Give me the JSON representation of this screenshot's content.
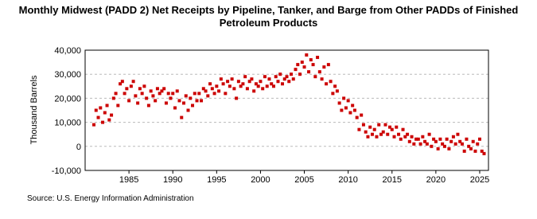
{
  "chart_data": {
    "type": "scatter",
    "title": "Monthly Midwest (PADD 2) Net Receipts by Pipeline, Tanker, and Barge from Other PADDs of Finished Petroleum Products",
    "y_label": "Thousand Barrels",
    "source": "Source: U.S. Energy Information Administration",
    "color": "#cc0000",
    "grid": true,
    "xlim": [
      1980,
      2026
    ],
    "xticks": [
      1985,
      1990,
      1995,
      2000,
      2005,
      2010,
      2015,
      2020,
      2025
    ],
    "ylim": [
      -10000,
      40000
    ],
    "yticks": [
      {
        "value": -10000,
        "label": "-10,000"
      },
      0,
      {
        "value": 10000,
        "label": "10,000"
      },
      {
        "value": 20000,
        "label": "20,000"
      },
      {
        "value": 30000,
        "label": "30,000"
      },
      {
        "value": 40000,
        "label": "40,000"
      }
    ],
    "x": [
      1981,
      1981.25,
      1981.5,
      1981.75,
      1982,
      1982.25,
      1982.5,
      1982.75,
      1983,
      1983.25,
      1983.5,
      1983.75,
      1984,
      1984.25,
      1984.5,
      1984.75,
      1985,
      1985.25,
      1985.5,
      1985.75,
      1986,
      1986.25,
      1986.5,
      1986.75,
      1987,
      1987.25,
      1987.5,
      1987.75,
      1988,
      1988.25,
      1988.5,
      1988.75,
      1989,
      1989.25,
      1989.5,
      1989.75,
      1990,
      1990.25,
      1990.5,
      1990.75,
      1991,
      1991.25,
      1991.5,
      1991.75,
      1992,
      1992.25,
      1992.5,
      1992.75,
      1993,
      1993.25,
      1993.5,
      1993.75,
      1994,
      1994.25,
      1994.5,
      1994.75,
      1995,
      1995.25,
      1995.5,
      1995.75,
      1996,
      1996.25,
      1996.5,
      1996.75,
      1997,
      1997.25,
      1997.5,
      1997.75,
      1998,
      1998.25,
      1998.5,
      1998.75,
      1999,
      1999.25,
      1999.5,
      1999.75,
      2000,
      2000.25,
      2000.5,
      2000.75,
      2001,
      2001.25,
      2001.5,
      2001.75,
      2002,
      2002.25,
      2002.5,
      2002.75,
      2003,
      2003.25,
      2003.5,
      2003.75,
      2004,
      2004.25,
      2004.5,
      2004.75,
      2005,
      2005.25,
      2005.5,
      2005.75,
      2006,
      2006.25,
      2006.5,
      2006.75,
      2007,
      2007.25,
      2007.5,
      2007.75,
      2008,
      2008.25,
      2008.5,
      2008.75,
      2009,
      2009.25,
      2009.5,
      2009.75,
      2010,
      2010.25,
      2010.5,
      2010.75,
      2011,
      2011.25,
      2011.5,
      2011.75,
      2012,
      2012.25,
      2012.5,
      2012.75,
      2013,
      2013.25,
      2013.5,
      2013.75,
      2014,
      2014.25,
      2014.5,
      2014.75,
      2015,
      2015.25,
      2015.5,
      2015.75,
      2016,
      2016.25,
      2016.5,
      2016.75,
      2017,
      2017.25,
      2017.5,
      2017.75,
      2018,
      2018.25,
      2018.5,
      2018.75,
      2019,
      2019.25,
      2019.5,
      2019.75,
      2020,
      2020.25,
      2020.5,
      2020.75,
      2021,
      2021.25,
      2021.5,
      2021.75,
      2022,
      2022.25,
      2022.5,
      2022.75,
      2023,
      2023.25,
      2023.5,
      2023.75,
      2024,
      2024.25,
      2024.5,
      2024.75,
      2025,
      2025.25,
      2025.5
    ],
    "values": [
      9000,
      15000,
      12000,
      16000,
      10000,
      14000,
      17000,
      11000,
      13000,
      20000,
      22000,
      17000,
      26000,
      27000,
      22000,
      24000,
      19000,
      25000,
      27000,
      21000,
      18000,
      24000,
      22000,
      25000,
      20000,
      17000,
      23000,
      21000,
      19000,
      24000,
      22000,
      23000,
      24000,
      18000,
      22000,
      20000,
      22000,
      16000,
      23000,
      19000,
      12000,
      18000,
      21000,
      15000,
      20000,
      17000,
      22000,
      19000,
      22000,
      19000,
      24000,
      23000,
      21000,
      26000,
      24000,
      22000,
      25000,
      23000,
      28000,
      26000,
      22000,
      27000,
      25000,
      28000,
      24000,
      20000,
      27000,
      25000,
      26000,
      29000,
      24000,
      27000,
      28000,
      23000,
      26000,
      25000,
      27000,
      24000,
      29000,
      25000,
      28000,
      26000,
      25000,
      29000,
      27000,
      30000,
      26000,
      28000,
      29000,
      27000,
      30000,
      28000,
      32000,
      34000,
      30000,
      35000,
      33000,
      38000,
      31000,
      36000,
      34000,
      29000,
      37000,
      31000,
      28000,
      33000,
      26000,
      34000,
      27000,
      22000,
      25000,
      23000,
      18000,
      15000,
      20000,
      16000,
      19000,
      14000,
      17000,
      15000,
      12000,
      7000,
      13000,
      9000,
      6000,
      4000,
      8000,
      5000,
      7000,
      4000,
      9000,
      5000,
      6000,
      9000,
      5000,
      8000,
      7000,
      4000,
      8000,
      5000,
      3000,
      7000,
      4000,
      5000,
      2000,
      4000,
      1000,
      3000,
      3000,
      1000,
      4000,
      2000,
      1000,
      5000,
      0,
      3000,
      2000,
      -1000,
      3000,
      1000,
      0,
      3000,
      -1000,
      2000,
      4000,
      1000,
      5000,
      2000,
      1000,
      -2000,
      3000,
      0,
      -1000,
      2000,
      -2000,
      1000,
      3000,
      -2000,
      -3000
    ]
  }
}
